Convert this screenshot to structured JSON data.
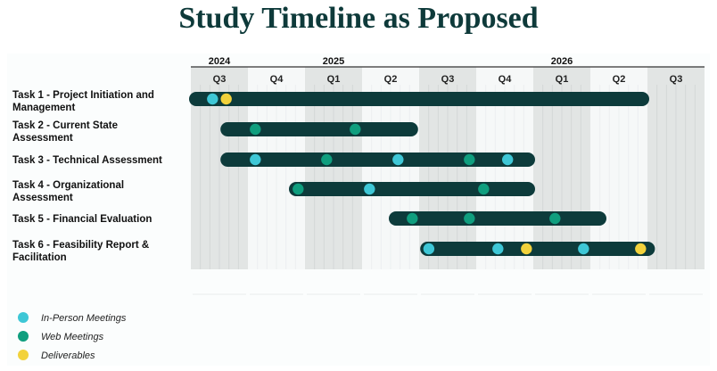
{
  "title": "Study Timeline as Proposed",
  "years": [
    "2024",
    "2025",
    "2026"
  ],
  "quarters": [
    "Q3",
    "Q4",
    "Q1",
    "Q2",
    "Q3",
    "Q4",
    "Q1",
    "Q2",
    "Q3"
  ],
  "colors": {
    "bar": "#0d3b3b",
    "in_person": "#3ec7d6",
    "web": "#0f9e7e",
    "deliverable": "#f2d23c",
    "shade": "#e2e5e4"
  },
  "tasks": [
    {
      "label_lines": [
        "Task 1 - Project Initiation and",
        "Management"
      ],
      "start": 0.0,
      "end": 8.0,
      "markers": [
        {
          "kind": "in_person",
          "at": 0.38
        },
        {
          "kind": "deliverable",
          "at": 0.62
        }
      ]
    },
    {
      "label_lines": [
        "Task 2 - Current State",
        "Assessment"
      ],
      "start": 0.55,
      "end": 3.95,
      "markers": [
        {
          "kind": "web",
          "at": 1.13
        },
        {
          "kind": "web",
          "at": 2.88
        }
      ]
    },
    {
      "label_lines": [
        "Task 3 - Technical Assessment"
      ],
      "start": 0.55,
      "end": 6.0,
      "markers": [
        {
          "kind": "in_person",
          "at": 1.13
        },
        {
          "kind": "web",
          "at": 2.38
        },
        {
          "kind": "in_person",
          "at": 3.63
        },
        {
          "kind": "web",
          "at": 4.88
        },
        {
          "kind": "in_person",
          "at": 5.55
        }
      ]
    },
    {
      "label_lines": [
        "Task 4 - Organizational",
        "Assessment"
      ],
      "start": 1.75,
      "end": 6.0,
      "markers": [
        {
          "kind": "web",
          "at": 1.88
        },
        {
          "kind": "in_person",
          "at": 3.13
        },
        {
          "kind": "web",
          "at": 5.13
        }
      ]
    },
    {
      "label_lines": [
        "Task 5 - Financial Evaluation"
      ],
      "start": 3.5,
      "end": 7.25,
      "markers": [
        {
          "kind": "web",
          "at": 3.88
        },
        {
          "kind": "web",
          "at": 4.88
        },
        {
          "kind": "web",
          "at": 6.38
        }
      ]
    },
    {
      "label_lines": [
        "Task 6 - Feasibility Report &",
        "Facilitation"
      ],
      "start": 4.05,
      "end": 8.1,
      "markers": [
        {
          "kind": "in_person",
          "at": 4.17
        },
        {
          "kind": "in_person",
          "at": 5.38
        },
        {
          "kind": "deliverable",
          "at": 5.88
        },
        {
          "kind": "in_person",
          "at": 6.88
        },
        {
          "kind": "deliverable",
          "at": 7.88
        }
      ]
    }
  ],
  "legend": [
    {
      "kind": "in_person",
      "label": "In-Person Meetings"
    },
    {
      "kind": "web",
      "label": "Web Meetings"
    },
    {
      "kind": "deliverable",
      "label": "Deliverables"
    }
  ]
}
